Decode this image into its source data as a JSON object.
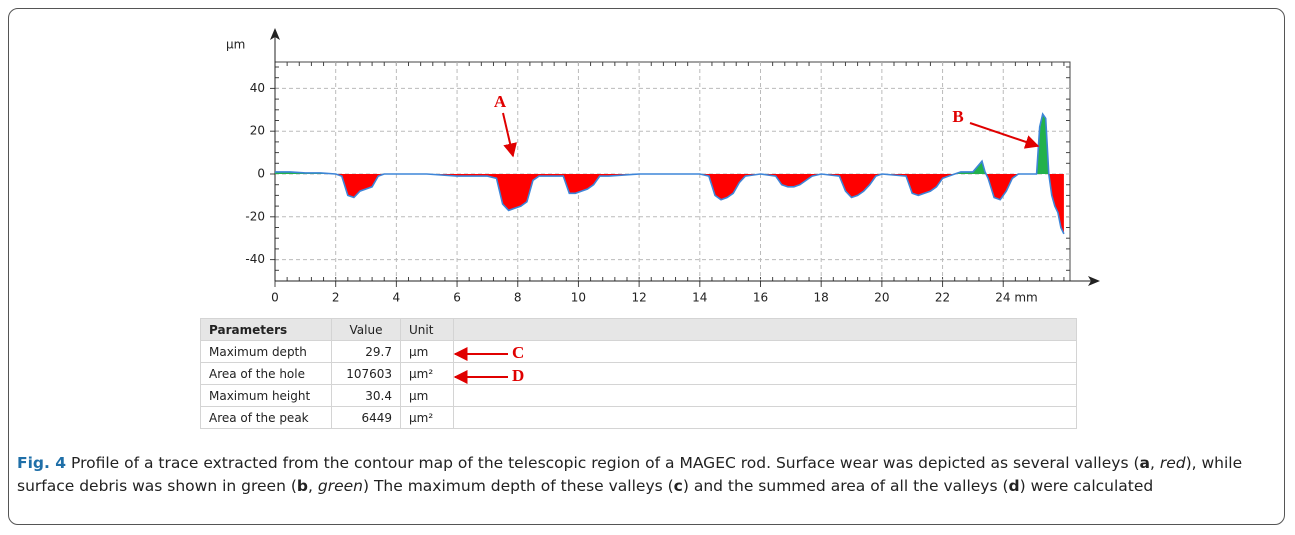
{
  "chart_data": {
    "type": "area",
    "y_label": "µm",
    "x": [
      0,
      0.5,
      1,
      1.5,
      2,
      2.2,
      2.4,
      2.6,
      2.8,
      3.0,
      3.2,
      3.4,
      3.6,
      4,
      5,
      6,
      7,
      7.3,
      7.5,
      7.7,
      7.9,
      8.1,
      8.3,
      8.5,
      8.7,
      9,
      9.5,
      9.7,
      9.9,
      10.1,
      10.3,
      10.5,
      10.7,
      11,
      12,
      13,
      14,
      14.3,
      14.5,
      14.7,
      14.9,
      15.1,
      15.3,
      15.5,
      16,
      16.5,
      16.7,
      16.9,
      17.1,
      17.3,
      17.5,
      17.7,
      18,
      18.6,
      18.8,
      19,
      19.2,
      19.4,
      19.6,
      19.8,
      20,
      20.8,
      21,
      21.2,
      21.4,
      21.6,
      21.8,
      22,
      22.2,
      22.6,
      23,
      23.3,
      23.4,
      23.5,
      23.7,
      23.9,
      24.1,
      24.3,
      24.5,
      24.8,
      25.1,
      25.2,
      25.3,
      25.4,
      25.5,
      25.6,
      25.7,
      25.8,
      25.9,
      26
    ],
    "values": [
      1,
      1,
      0.5,
      0.5,
      0,
      -1,
      -10,
      -11,
      -8,
      -7,
      -6,
      -1,
      0,
      0,
      0,
      -1,
      -1,
      -2,
      -14,
      -17,
      -16,
      -15,
      -13,
      -3,
      -1,
      -1,
      -1,
      -9,
      -9,
      -8,
      -7,
      -5,
      -1,
      -1,
      0,
      0,
      0,
      -1,
      -10,
      -12,
      -11,
      -9,
      -4,
      -1,
      0,
      -1,
      -5,
      -6,
      -6,
      -5,
      -3,
      -1,
      0,
      -1,
      -8,
      -11,
      -10,
      -8,
      -5,
      -1,
      0,
      -1,
      -9,
      -10,
      -9,
      -8,
      -6,
      -2,
      -1,
      1,
      1,
      6,
      1,
      -2,
      -11,
      -12,
      -8,
      -2,
      0,
      0,
      0,
      22,
      28,
      26,
      0,
      -10,
      -15,
      -18,
      -25,
      -28
    ],
    "line_color": "#3d85d8",
    "fill_below": "#ff0000",
    "fill_above": "#22b14c",
    "xlim": [
      0,
      26.2
    ],
    "ylim": [
      -50,
      50
    ],
    "xticks": [
      0,
      2,
      4,
      6,
      8,
      10,
      12,
      14,
      16,
      18,
      20,
      22,
      {
        "value": 24,
        "label": "24 mm"
      }
    ],
    "yticks": [
      -40,
      -20,
      0,
      20,
      40
    ],
    "grid": true,
    "annotations": [
      "A",
      "B"
    ]
  },
  "table": {
    "header": [
      "Parameters",
      "Value",
      "Unit"
    ],
    "rows": [
      [
        "Maximum depth",
        "29.7",
        "µm"
      ],
      [
        "Area of the hole",
        "107603",
        "µm²"
      ],
      [
        "Maximum height",
        "30.4",
        "µm"
      ],
      [
        "Area of the peak",
        "6449",
        "µm²"
      ]
    ],
    "annotations": [
      "C",
      "D"
    ]
  },
  "caption": [
    "Fig. 4",
    " Profile of a trace extracted from the contour map of the telescopic region of a MAGEC rod. Surface wear was depicted as several valleys (",
    "a",
    ", ",
    "red",
    "), while surface debris was shown in green (",
    "b",
    ", ",
    "green",
    ") The maximum depth of these valleys (",
    "c",
    ") and the summed area of all the valleys (",
    "d",
    ") were calculated"
  ]
}
